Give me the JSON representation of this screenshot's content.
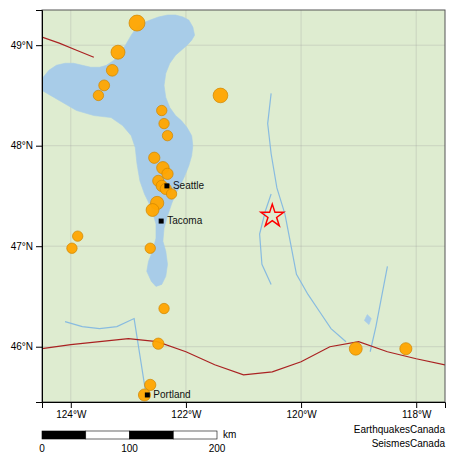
{
  "chart_data": {
    "type": "scatter",
    "background": "#deecd0",
    "grid": true,
    "xlim": [
      -124.5,
      -117.5
    ],
    "ylim": [
      45.45,
      49.35
    ],
    "xticks": [
      {
        "value": -124,
        "label": "124°W"
      },
      {
        "value": -122,
        "label": "122°W"
      },
      {
        "value": -120,
        "label": "120°W"
      },
      {
        "value": -118,
        "label": "118°W"
      }
    ],
    "yticks": [
      {
        "value": 46,
        "label": "46°N"
      },
      {
        "value": 47,
        "label": "47°N"
      },
      {
        "value": 48,
        "label": "48°N"
      },
      {
        "value": 49,
        "label": "49°N"
      }
    ],
    "series": [
      {
        "type": "polygon",
        "color": "#a8cce8",
        "x": [
          -124.5,
          -124.5,
          -124.2,
          -123.9,
          -123.6,
          -123.3,
          -123.1,
          -122.95,
          -122.88,
          -122.85,
          -122.8,
          -122.72,
          -122.6,
          -122.52,
          -122.52,
          -122.58,
          -122.65,
          -122.68,
          -122.6,
          -122.52,
          -122.42,
          -122.35,
          -122.32,
          -122.35,
          -122.4,
          -122.38,
          -122.32,
          -122.25,
          -122.18,
          -122.1,
          -122.02,
          -121.95,
          -121.9,
          -121.88,
          -121.9,
          -121.98,
          -122.08,
          -122.18,
          -122.28,
          -122.35,
          -122.38,
          -122.35,
          -122.28,
          -122.18,
          -122.08,
          -121.98,
          -121.9,
          -121.85,
          -121.88,
          -121.95,
          -122.05,
          -122.18,
          -122.32,
          -122.48,
          -122.62,
          -122.75,
          -122.85,
          -122.95,
          -123.05,
          -123.15,
          -123.25,
          -123.38,
          -123.5,
          -123.65,
          -123.8,
          -123.95,
          -124.1,
          -124.25,
          -124.38,
          -124.48,
          -124.5
        ],
        "values": [
          49.35,
          48.55,
          48.45,
          48.35,
          48.3,
          48.28,
          48.2,
          48.1,
          47.98,
          47.82,
          47.65,
          47.52,
          47.38,
          47.22,
          47.08,
          46.95,
          46.85,
          46.75,
          46.65,
          46.6,
          46.62,
          46.7,
          46.82,
          46.95,
          47.05,
          47.18,
          47.3,
          47.42,
          47.52,
          47.6,
          47.7,
          47.8,
          47.9,
          48.0,
          48.1,
          48.18,
          48.25,
          48.3,
          48.38,
          48.48,
          48.6,
          48.72,
          48.82,
          48.9,
          48.95,
          49.0,
          49.05,
          49.1,
          49.18,
          49.25,
          49.28,
          49.3,
          49.3,
          49.28,
          49.25,
          49.22,
          49.18,
          49.1,
          49.0,
          48.92,
          48.85,
          48.8,
          48.78,
          48.78,
          48.8,
          48.82,
          48.82,
          48.8,
          48.75,
          48.68,
          48.55
        ]
      },
      {
        "type": "polygon",
        "color": "#a8cce8",
        "x": [
          -118.85,
          -118.78,
          -118.82,
          -118.9
        ],
        "values": [
          46.32,
          46.28,
          46.22,
          46.26
        ]
      },
      {
        "type": "line",
        "color": "#88bbe0",
        "x": [
          -124.1,
          -123.8,
          -123.5,
          -123.2,
          -122.9,
          -122.7
        ],
        "values": [
          46.25,
          46.2,
          46.18,
          46.2,
          46.28,
          45.55
        ]
      },
      {
        "type": "line",
        "color": "#88bbe0",
        "x": [
          -120.52,
          -120.58,
          -120.52,
          -120.42,
          -120.28,
          -120.18,
          -120.08,
          -119.88,
          -119.68,
          -119.48,
          -119.22
        ],
        "values": [
          48.52,
          48.22,
          47.92,
          47.58,
          47.32,
          47.02,
          46.72,
          46.52,
          46.35,
          46.18,
          46.05
        ]
      },
      {
        "type": "line",
        "color": "#88bbe0",
        "x": [
          -120.52,
          -120.62,
          -120.72,
          -120.68,
          -120.52
        ],
        "values": [
          47.52,
          47.35,
          47.12,
          46.82,
          46.62
        ]
      },
      {
        "type": "line",
        "color": "#88bbe0",
        "x": [
          -118.5,
          -118.6,
          -118.7,
          -118.8
        ],
        "values": [
          46.8,
          46.5,
          46.2,
          45.95
        ]
      },
      {
        "type": "line",
        "color": "#aa2222",
        "x": [
          -124.5,
          -124.0,
          -123.5,
          -123.0,
          -122.5,
          -122.0,
          -121.5,
          -121.0,
          -120.5,
          -120.0,
          -119.5,
          -119.0,
          -118.5,
          -118.0,
          -117.5
        ],
        "values": [
          45.98,
          46.02,
          46.05,
          46.08,
          46.05,
          45.95,
          45.82,
          45.72,
          45.75,
          45.85,
          46.0,
          46.05,
          45.95,
          45.88,
          45.82
        ]
      },
      {
        "type": "line",
        "color": "#aa2222",
        "x": [
          -124.5,
          -124.2,
          -123.9,
          -123.6
        ],
        "values": [
          49.08,
          49.02,
          48.95,
          48.88
        ]
      },
      {
        "type": "scatter",
        "marker": "circle",
        "color": "#FFA500",
        "x": [
          -122.85,
          -123.18,
          -123.28,
          -123.42,
          -123.52,
          -121.4,
          -122.42,
          -122.38,
          -122.32,
          -122.55,
          -122.4,
          -122.32,
          -122.48,
          -122.42,
          -122.35,
          -122.25,
          -122.5,
          -122.58,
          -123.88,
          -123.98,
          -122.62,
          -122.38,
          -122.48,
          -122.62,
          -122.72,
          -119.05,
          -118.18
        ],
        "values": [
          49.22,
          48.93,
          48.75,
          48.6,
          48.5,
          48.5,
          48.35,
          48.22,
          48.1,
          47.88,
          47.78,
          47.72,
          47.65,
          47.6,
          47.57,
          47.52,
          47.43,
          47.36,
          47.1,
          46.98,
          46.98,
          46.38,
          46.03,
          45.62,
          45.52,
          45.98,
          45.98
        ],
        "sizes": [
          130,
          100,
          70,
          60,
          55,
          110,
          55,
          55,
          55,
          65,
          80,
          65,
          65,
          65,
          65,
          55,
          90,
          85,
          55,
          55,
          55,
          55,
          65,
          65,
          75,
          85,
          75
        ]
      },
      {
        "type": "scatter",
        "marker": "star",
        "color": "red",
        "x": [
          -120.5
        ],
        "values": [
          47.3
        ]
      },
      {
        "type": "scatter",
        "marker": "square",
        "color": "black",
        "x": [
          -122.33,
          -122.43,
          -122.67
        ],
        "values": [
          47.6,
          47.25,
          45.52
        ],
        "labels": [
          "Seattle",
          "Tacoma",
          "Portland"
        ]
      }
    ],
    "scale_bar": {
      "xlim": [
        0,
        240
      ],
      "segments": [
        0,
        50,
        100,
        150,
        200
      ],
      "xticks": [
        0,
        100,
        200
      ],
      "label": "km"
    },
    "credit": [
      "EarthquakesCanada",
      "SeismesCanada"
    ]
  }
}
